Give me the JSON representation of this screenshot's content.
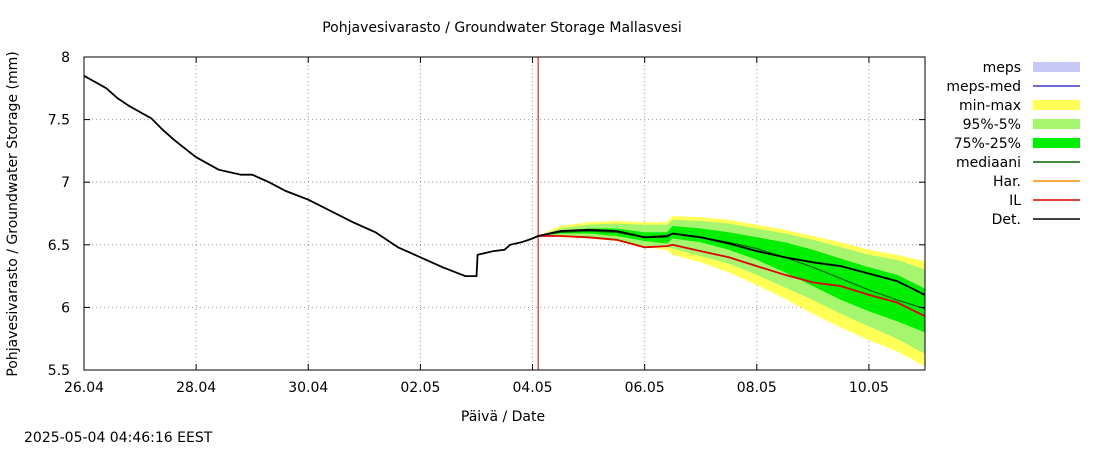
{
  "chart_data": {
    "type": "line",
    "title": "Pohjavesivarasto / Groundwater Storage   Mallasvesi",
    "xlabel": "Päivä / Date",
    "ylabel": "Pohjavesivarasto / Groundwater Storage (mm)",
    "x_range_days": [
      0,
      15
    ],
    "x_ticks": [
      {
        "day": 0,
        "label": "26.04"
      },
      {
        "day": 2,
        "label": "28.04"
      },
      {
        "day": 4,
        "label": "30.04"
      },
      {
        "day": 6,
        "label": "02.05"
      },
      {
        "day": 8,
        "label": "04.05"
      },
      {
        "day": 10,
        "label": "06.05"
      },
      {
        "day": 12,
        "label": "08.05"
      },
      {
        "day": 14,
        "label": "10.05"
      }
    ],
    "ylim": [
      5.5,
      8
    ],
    "y_ticks": [
      "5.5",
      "6",
      "6.5",
      "7",
      "7.5",
      "8"
    ],
    "grid": true,
    "forecast_start_day": 8.1,
    "legend_position": "right",
    "legend": [
      {
        "label": "meps",
        "kind": "band",
        "color": "#c8c8f5"
      },
      {
        "label": "meps-med",
        "kind": "line",
        "color": "#3a3ac0"
      },
      {
        "label": "min-max",
        "kind": "band",
        "color": "#ffff55"
      },
      {
        "label": "95%-5%",
        "kind": "band",
        "color": "#a6f56e"
      },
      {
        "label": "75%-25%",
        "kind": "band",
        "color": "#00ee00"
      },
      {
        "label": "mediaani",
        "kind": "line",
        "color": "#006400"
      },
      {
        "label": "Har.",
        "kind": "line",
        "color": "#ff8c00"
      },
      {
        "label": "IL",
        "kind": "line",
        "color": "#e00000"
      },
      {
        "label": "Det.",
        "kind": "line",
        "color": "#000000"
      }
    ],
    "series": {
      "observed": {
        "x": [
          0,
          0.2,
          0.4,
          0.6,
          0.8,
          1.0,
          1.2,
          1.4,
          1.6,
          1.8,
          2.0,
          2.4,
          2.8,
          3.0,
          3.2,
          3.3,
          3.6,
          4.0,
          4.4,
          4.8,
          5.2,
          5.6,
          6.0,
          6.4,
          6.8,
          7.0,
          7.02,
          7.3,
          7.5,
          7.6,
          7.8,
          8.0,
          8.1
        ],
        "y": [
          7.85,
          7.8,
          7.75,
          7.67,
          7.61,
          7.56,
          7.51,
          7.42,
          7.34,
          7.27,
          7.2,
          7.1,
          7.06,
          7.06,
          7.02,
          7.0,
          6.93,
          6.86,
          6.77,
          6.68,
          6.6,
          6.48,
          6.4,
          6.32,
          6.25,
          6.25,
          6.42,
          6.45,
          6.46,
          6.5,
          6.52,
          6.55,
          6.57
        ]
      },
      "minmax": {
        "x": [
          8.1,
          8.5,
          9,
          9.5,
          10,
          10.4,
          10.5,
          11,
          11.5,
          12,
          12.5,
          13,
          13.5,
          14,
          14.5,
          15
        ],
        "upper": [
          6.57,
          6.65,
          6.68,
          6.69,
          6.68,
          6.68,
          6.73,
          6.72,
          6.7,
          6.66,
          6.62,
          6.57,
          6.52,
          6.46,
          6.42,
          6.37
        ],
        "lower": [
          6.57,
          6.56,
          6.55,
          6.53,
          6.48,
          6.46,
          6.42,
          6.36,
          6.28,
          6.18,
          6.07,
          5.95,
          5.84,
          5.74,
          5.65,
          5.53
        ]
      },
      "p95_5": {
        "x": [
          8.1,
          8.5,
          9,
          9.5,
          10,
          10.4,
          10.5,
          11,
          11.5,
          12,
          12.5,
          13,
          13.5,
          14,
          14.5,
          15
        ],
        "upper": [
          6.57,
          6.63,
          6.66,
          6.67,
          6.66,
          6.66,
          6.7,
          6.69,
          6.67,
          6.63,
          6.59,
          6.54,
          6.48,
          6.42,
          6.38,
          6.3
        ],
        "lower": [
          6.57,
          6.57,
          6.56,
          6.54,
          6.49,
          6.48,
          6.47,
          6.41,
          6.35,
          6.26,
          6.16,
          6.06,
          5.95,
          5.85,
          5.75,
          5.63
        ]
      },
      "p75_25": {
        "x": [
          8.1,
          8.5,
          9,
          9.5,
          10,
          10.4,
          10.5,
          11,
          11.5,
          12,
          12.5,
          13,
          13.5,
          14,
          14.5,
          15
        ],
        "upper": [
          6.57,
          6.61,
          6.63,
          6.63,
          6.6,
          6.6,
          6.65,
          6.63,
          6.6,
          6.56,
          6.52,
          6.46,
          6.39,
          6.32,
          6.26,
          6.15
        ],
        "lower": [
          6.57,
          6.59,
          6.59,
          6.57,
          6.53,
          6.51,
          6.55,
          6.52,
          6.46,
          6.38,
          6.28,
          6.17,
          6.06,
          5.97,
          5.89,
          5.8
        ]
      },
      "mediaani": {
        "x": [
          8.1,
          8.5,
          9,
          9.5,
          10,
          10.4,
          10.5,
          11,
          11.5,
          12,
          12.5,
          13,
          13.5,
          14,
          14.5,
          15
        ],
        "y": [
          6.57,
          6.6,
          6.61,
          6.6,
          6.56,
          6.56,
          6.59,
          6.56,
          6.52,
          6.47,
          6.4,
          6.32,
          6.23,
          6.14,
          6.06,
          5.99
        ]
      },
      "il": {
        "x": [
          8.1,
          8.5,
          9,
          9.5,
          10,
          10.4,
          10.5,
          11,
          11.5,
          12,
          12.5,
          13,
          13.5,
          14,
          14.5,
          15
        ],
        "y": [
          6.57,
          6.57,
          6.56,
          6.54,
          6.48,
          6.49,
          6.5,
          6.45,
          6.4,
          6.33,
          6.26,
          6.2,
          6.17,
          6.1,
          6.04,
          5.93
        ]
      },
      "det": {
        "x": [
          8.1,
          8.5,
          9,
          9.5,
          10,
          10.4,
          10.5,
          11,
          11.5,
          12,
          12.5,
          13,
          13.5,
          14,
          14.5,
          15
        ],
        "y": [
          6.57,
          6.61,
          6.62,
          6.61,
          6.56,
          6.57,
          6.59,
          6.56,
          6.51,
          6.45,
          6.4,
          6.36,
          6.33,
          6.27,
          6.21,
          6.1
        ]
      }
    }
  },
  "footer": {
    "timestamp": "2025-05-04 04:46:16 EEST"
  }
}
